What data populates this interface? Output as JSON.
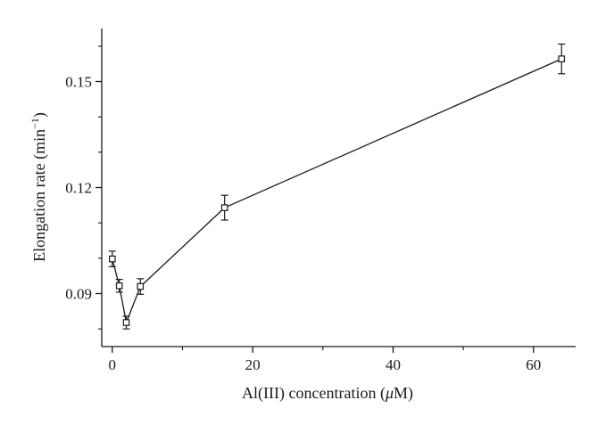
{
  "chart_data": {
    "type": "line",
    "title": "",
    "xlabel": "Al(III) concentration (",
    "xlabel_symbol": "μ",
    "xlabel_unit": "M)",
    "ylabel": "Elongation rate (min",
    "ylabel_exponent": "−1",
    "ylabel_close": ")",
    "xlim": [
      -1.5,
      66
    ],
    "ylim": [
      0.075,
      0.165
    ],
    "x_ticks": [
      0,
      20,
      40,
      60
    ],
    "x_tick_labels": [
      "0",
      "20",
      "40",
      "60"
    ],
    "x_minor_ticks": [
      10,
      30,
      50
    ],
    "y_ticks": [
      0.09,
      0.12,
      0.15
    ],
    "y_tick_labels": [
      "0.09",
      "0.12",
      "0.15"
    ],
    "y_minor_ticks": [
      0.08,
      0.1,
      0.11,
      0.13,
      0.14,
      0.16
    ],
    "grid": false,
    "legend": "none",
    "marker": "open-square",
    "line_color": "#1a1a1a",
    "series": [
      {
        "x": [
          0,
          1,
          2,
          4,
          16,
          64
        ],
        "y": [
          0.0998,
          0.0922,
          0.0818,
          0.092,
          0.1143,
          0.1564
        ],
        "error": [
          0.0022,
          0.0018,
          0.0018,
          0.0022,
          0.0035,
          0.0042
        ]
      }
    ]
  }
}
